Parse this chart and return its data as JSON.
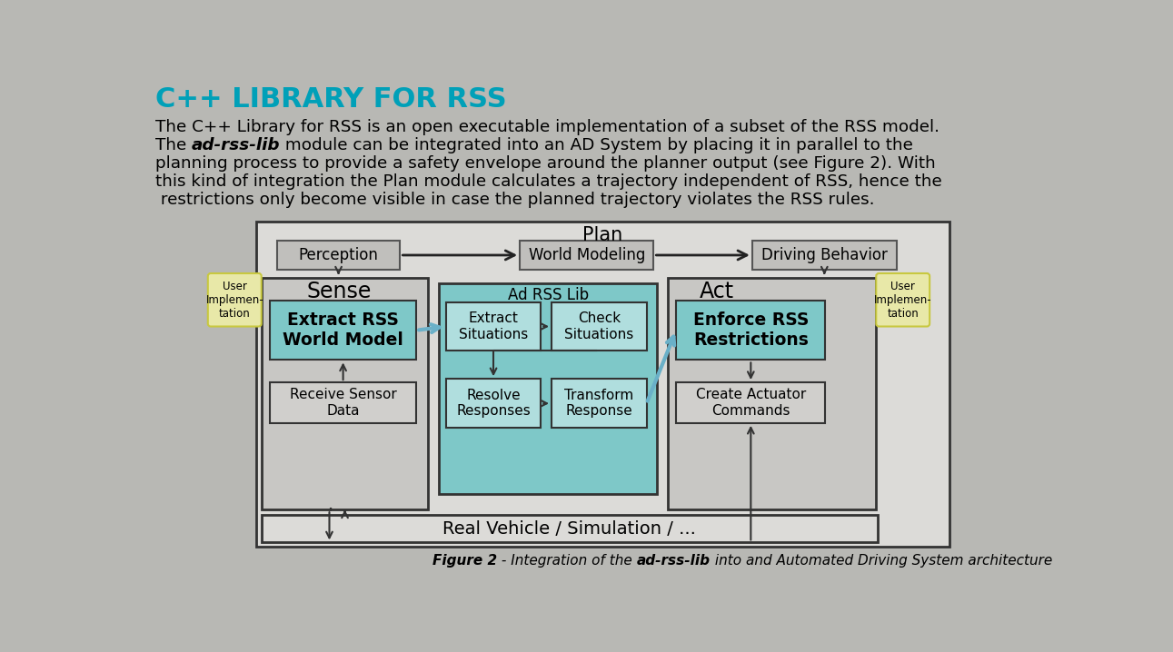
{
  "bg_color": "#b8b8b4",
  "title": "C++ LIBRARY FOR RSS",
  "title_color": "#00a0b8",
  "body_lines": [
    "The C++ Library for RSS is an open executable implementation of a subset of the RSS model.",
    [
      "The ",
      "ad-rss-lib",
      " module can be integrated into an AD System by placing it in parallel to the"
    ],
    "planning process to provide a safety envelope around the planner output (see Figure 2). With",
    "this kind of integration the Plan module calculates a trajectory independent of RSS, hence the",
    " restrictions only become visible in case the planned trajectory violates the RSS rules."
  ],
  "plan_label": "Plan",
  "perception_label": "Perception",
  "world_modeling_label": "World Modeling",
  "driving_behavior_label": "Driving Behavior",
  "sense_label": "Sense",
  "ad_rss_lib_label": "Ad RSS Lib",
  "act_label": "Act",
  "extract_rss_label": "Extract RSS\nWorld Model",
  "receive_sensor_label": "Receive Sensor\nData",
  "extract_situations_label": "Extract\nSituations",
  "check_situations_label": "Check\nSituations",
  "resolve_responses_label": "Resolve\nResponses",
  "transform_response_label": "Transform\nResponse",
  "enforce_rss_label": "Enforce RSS\nRestrictions",
  "create_actuator_label": "Create Actuator\nCommands",
  "real_vehicle_label": "Real Vehicle / Simulation / ...",
  "user_impl_label": "User\nImplemen-\ntation",
  "figure_caption_parts": [
    "Figure 2",
    " - Integration of the ",
    "ad-rss-lib",
    " into and Automated Driving System architecture"
  ],
  "color_gray_box": "#c0bfbc",
  "color_teal_box": "#7ec8c8",
  "color_teal_inner": "#b0dede",
  "color_light_gray": "#d0cfcc",
  "color_sense_bg": "#c8c7c4",
  "color_act_bg": "#c8c7c4",
  "color_outer_bg": "#dcdbd8",
  "color_user_bubble": "#e8e8a8",
  "color_user_bubble_edge": "#c8c840",
  "color_rv_bg": "#dcdbd8",
  "color_dark_arrow": "#333333",
  "color_blue_arrow": "#6ab0c8"
}
